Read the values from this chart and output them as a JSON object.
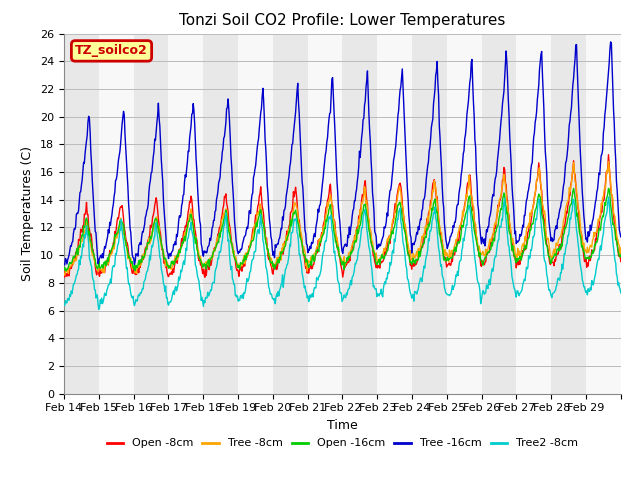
{
  "title": "Tonzi Soil CO2 Profile: Lower Temperatures",
  "xlabel": "Time",
  "ylabel": "Soil Temperatures (C)",
  "ylim": [
    0,
    26
  ],
  "yticks": [
    0,
    2,
    4,
    6,
    8,
    10,
    12,
    14,
    16,
    18,
    20,
    22,
    24,
    26
  ],
  "date_labels": [
    "Feb 14",
    "Feb 15",
    "Feb 16",
    "Feb 17",
    "Feb 18",
    "Feb 19",
    "Feb 20",
    "Feb 21",
    "Feb 22",
    "Feb 23",
    "Feb 24",
    "Feb 25",
    "Feb 26",
    "Feb 27",
    "Feb 28",
    "Feb 29"
  ],
  "legend_label": "TZ_soilco2",
  "series_labels": [
    "Open -8cm",
    "Tree -8cm",
    "Open -16cm",
    "Tree -16cm",
    "Tree2 -8cm"
  ],
  "series_colors": [
    "#ff0000",
    "#ffa500",
    "#00cc00",
    "#0000cc",
    "#00cccc"
  ],
  "n_days": 16,
  "points_per_day": 48,
  "background_color": "#ffffff",
  "grid_color": "#cccccc",
  "title_fontsize": 11,
  "axis_fontsize": 9,
  "tick_fontsize": 8
}
